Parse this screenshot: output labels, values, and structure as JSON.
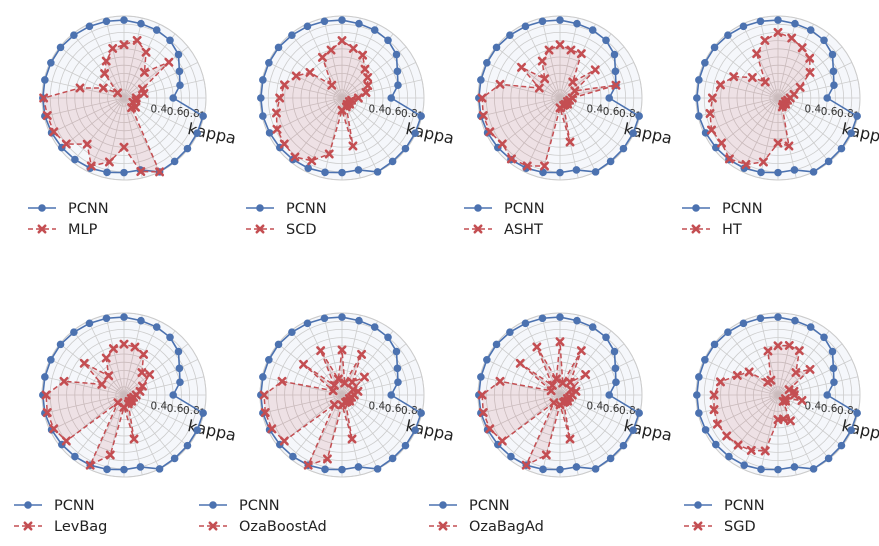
{
  "colors": {
    "reference": "#4c72b0",
    "compared": "#c44e52",
    "grid": "#cccccc",
    "compared_fill": "#c44e52",
    "reference_fill": "#dde4f0"
  },
  "chart_data": [
    {
      "type": "radar",
      "radial_label": "kappa",
      "radial_ticks": [
        "0.4",
        "0.6",
        "0.8",
        "1"
      ],
      "rlim": [
        0,
        1
      ],
      "legend_position": "below",
      "series": [
        {
          "name": "PCNN",
          "values": [
            0.6,
            0.7,
            0.75,
            0.85,
            0.9,
            0.92,
            0.93,
            0.95,
            0.96,
            0.97,
            0.98,
            0.99,
            0.99,
            0.99,
            0.99,
            0.99,
            0.98,
            0.97,
            0.96,
            0.95,
            0.93,
            0.91,
            0.9,
            1.0,
            0.99,
            0.99,
            0.99,
            0.99
          ]
        },
        {
          "name": "MLP",
          "values": [
            0.15,
            0.25,
            0.25,
            0.7,
            0.4,
            0.62,
            0.72,
            0.65,
            0.62,
            0.5,
            0.38,
            0.1,
            0.28,
            0.55,
            0.98,
            0.96,
            0.95,
            0.9,
            0.72,
            0.92,
            0.8,
            0.6,
            0.92,
            1.0,
            0.15,
            0.18,
            0.12,
            0.15
          ]
        }
      ]
    },
    {
      "type": "radar",
      "radial_label": "kappa",
      "radial_ticks": [
        "0.4",
        "0.6",
        "0.8",
        "1"
      ],
      "rlim": [
        0,
        1
      ],
      "legend_position": "below",
      "series": [
        {
          "name": "PCNN",
          "values": [
            0.6,
            0.7,
            0.75,
            0.85,
            0.9,
            0.92,
            0.93,
            0.95,
            0.96,
            0.97,
            0.98,
            0.99,
            0.99,
            0.99,
            0.99,
            0.99,
            0.98,
            0.97,
            0.96,
            0.95,
            0.93,
            0.91,
            0.9,
            1.0,
            0.99,
            0.99,
            0.99,
            0.99
          ]
        },
        {
          "name": "SCD",
          "values": [
            0.2,
            0.3,
            0.35,
            0.4,
            0.45,
            0.58,
            0.62,
            0.7,
            0.6,
            0.55,
            0.2,
            0.5,
            0.62,
            0.72,
            0.76,
            0.82,
            0.88,
            0.9,
            0.92,
            0.85,
            0.7,
            0.15,
            0.6,
            0.12,
            0.1,
            0.12,
            0.1,
            0.12
          ]
        }
      ]
    },
    {
      "type": "radar",
      "radial_label": "kappa",
      "radial_ticks": [
        "0.4",
        "0.6",
        "0.8",
        "1"
      ],
      "rlim": [
        0,
        1
      ],
      "legend_position": "below",
      "series": [
        {
          "name": "PCNN",
          "values": [
            0.6,
            0.7,
            0.75,
            0.85,
            0.9,
            0.92,
            0.93,
            0.95,
            0.96,
            0.97,
            0.98,
            0.99,
            0.99,
            0.99,
            0.99,
            0.99,
            0.98,
            0.97,
            0.96,
            0.95,
            0.93,
            0.91,
            0.9,
            1.0,
            0.99,
            0.99,
            0.99,
            0.99
          ]
        },
        {
          "name": "ASHT",
          "values": [
            0.15,
            0.7,
            0.2,
            0.55,
            0.25,
            0.6,
            0.6,
            0.65,
            0.6,
            0.5,
            0.3,
            0.6,
            0.28,
            0.75,
            0.95,
            0.96,
            0.95,
            0.9,
            0.95,
            0.92,
            0.85,
            0.12,
            0.55,
            0.1,
            0.1,
            0.12,
            0.1,
            0.12
          ]
        }
      ]
    },
    {
      "type": "radar",
      "radial_label": "kappa",
      "radial_ticks": [
        "0.4",
        "0.6",
        "0.8",
        "1"
      ],
      "rlim": [
        0,
        1
      ],
      "legend_position": "below",
      "series": [
        {
          "name": "PCNN",
          "values": [
            0.6,
            0.7,
            0.75,
            0.85,
            0.9,
            0.92,
            0.93,
            0.95,
            0.96,
            0.97,
            0.98,
            0.99,
            0.99,
            0.99,
            0.99,
            0.99,
            0.98,
            0.97,
            0.96,
            0.95,
            0.93,
            0.91,
            0.9,
            1.0,
            0.99,
            0.99,
            0.99,
            0.99
          ]
        },
        {
          "name": "HT",
          "values": [
            0.15,
            0.2,
            0.3,
            0.5,
            0.62,
            0.68,
            0.75,
            0.8,
            0.72,
            0.6,
            0.25,
            0.4,
            0.6,
            0.72,
            0.8,
            0.85,
            0.9,
            0.88,
            0.95,
            0.9,
            0.8,
            0.55,
            0.6,
            0.12,
            0.1,
            0.12,
            0.1,
            0.12
          ]
        }
      ]
    },
    {
      "type": "radar",
      "radial_label": "kappa",
      "radial_ticks": [
        "0.4",
        "0.6",
        "0.8",
        "1"
      ],
      "rlim": [
        0,
        1
      ],
      "legend_position": "below",
      "series": [
        {
          "name": "PCNN",
          "values": [
            0.6,
            0.7,
            0.75,
            0.85,
            0.9,
            0.92,
            0.93,
            0.95,
            0.96,
            0.97,
            0.98,
            0.99,
            0.99,
            0.99,
            0.99,
            0.99,
            0.98,
            0.97,
            0.96,
            0.95,
            0.93,
            0.91,
            0.9,
            1.0,
            0.99,
            0.99,
            0.99,
            0.99
          ]
        },
        {
          "name": "LevBag",
          "values": [
            0.15,
            0.2,
            0.25,
            0.4,
            0.35,
            0.55,
            0.6,
            0.62,
            0.58,
            0.5,
            0.3,
            0.62,
            0.3,
            0.75,
            0.95,
            0.96,
            0.95,
            0.9,
            0.12,
            0.95,
            0.75,
            0.15,
            0.55,
            0.12,
            0.1,
            0.12,
            0.1,
            0.12
          ]
        }
      ]
    },
    {
      "type": "radar",
      "radial_label": "kappa",
      "radial_ticks": [
        "0.4",
        "0.6",
        "0.8",
        "1"
      ],
      "rlim": [
        0,
        1
      ],
      "legend_position": "below",
      "series": [
        {
          "name": "PCNN",
          "values": [
            0.6,
            0.7,
            0.75,
            0.85,
            0.9,
            0.92,
            0.93,
            0.95,
            0.96,
            0.97,
            0.98,
            0.99,
            0.99,
            0.99,
            0.99,
            0.99,
            0.98,
            0.97,
            0.96,
            0.95,
            0.93,
            0.91,
            0.9,
            1.0,
            0.99,
            0.99,
            0.99,
            0.99
          ]
        },
        {
          "name": "OzaBoostAd",
          "values": [
            0.15,
            0.2,
            0.15,
            0.35,
            0.2,
            0.55,
            0.15,
            0.55,
            0.2,
            0.6,
            0.15,
            0.6,
            0.12,
            0.75,
            0.95,
            0.96,
            0.95,
            0.9,
            0.15,
            0.95,
            0.8,
            0.12,
            0.55,
            0.1,
            0.1,
            0.12,
            0.1,
            0.12
          ]
        }
      ]
    },
    {
      "type": "radar",
      "radial_label": "kappa",
      "radial_ticks": [
        "0.4",
        "0.6",
        "0.8",
        "1"
      ],
      "rlim": [
        0,
        1
      ],
      "legend_position": "below",
      "series": [
        {
          "name": "PCNN",
          "values": [
            0.6,
            0.7,
            0.75,
            0.85,
            0.9,
            0.92,
            0.93,
            0.95,
            0.96,
            0.97,
            0.98,
            0.99,
            0.99,
            0.99,
            0.99,
            0.99,
            0.98,
            0.97,
            0.96,
            0.95,
            0.93,
            0.91,
            0.9,
            1.0,
            0.99,
            0.99,
            0.99,
            0.99
          ]
        },
        {
          "name": "OzaBagAd",
          "values": [
            0.15,
            0.2,
            0.15,
            0.4,
            0.2,
            0.6,
            0.15,
            0.65,
            0.2,
            0.65,
            0.15,
            0.62,
            0.12,
            0.75,
            0.95,
            0.96,
            0.95,
            0.9,
            0.12,
            0.95,
            0.75,
            0.12,
            0.55,
            0.1,
            0.1,
            0.12,
            0.1,
            0.12
          ]
        }
      ]
    },
    {
      "type": "radar",
      "radial_label": "kappa",
      "radial_ticks": [
        "0.4",
        "0.6",
        "0.8",
        "1"
      ],
      "rlim": [
        0,
        1
      ],
      "legend_position": "below",
      "series": [
        {
          "name": "PCNN",
          "values": [
            0.6,
            0.7,
            0.75,
            0.85,
            0.9,
            0.92,
            0.93,
            0.95,
            0.96,
            0.97,
            0.98,
            0.99,
            0.99,
            0.99,
            0.99,
            0.99,
            0.98,
            0.97,
            0.96,
            0.95,
            0.93,
            0.91,
            0.9,
            1.0,
            0.99,
            0.99,
            0.99,
            0.99
          ]
        },
        {
          "name": "SGD",
          "values": [
            0.2,
            0.2,
            0.15,
            0.5,
            0.35,
            0.6,
            0.62,
            0.6,
            0.55,
            0.2,
            0.2,
            0.45,
            0.55,
            0.72,
            0.78,
            0.8,
            0.82,
            0.8,
            0.78,
            0.75,
            0.7,
            0.3,
            0.3,
            0.35,
            0.1,
            0.12,
            0.1,
            0.3
          ]
        }
      ]
    }
  ]
}
